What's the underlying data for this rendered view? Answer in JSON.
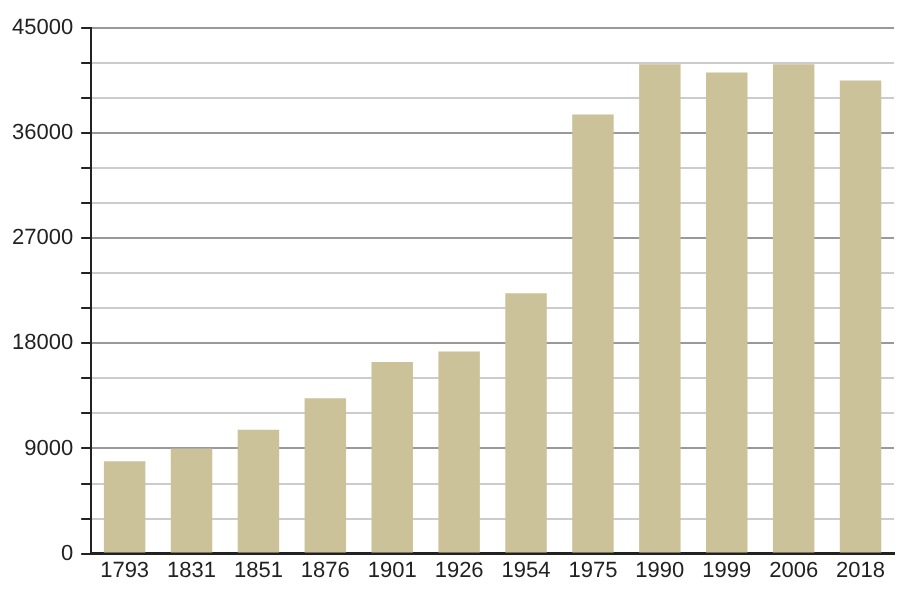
{
  "chart_data": {
    "type": "bar",
    "categories": [
      "1793",
      "1831",
      "1851",
      "1876",
      "1901",
      "1926",
      "1954",
      "1975",
      "1990",
      "1999",
      "2006",
      "2018"
    ],
    "values": [
      7900,
      9000,
      10600,
      13300,
      16400,
      17300,
      22300,
      37600,
      41900,
      41200,
      41900,
      40500
    ],
    "color": "#ccc29a",
    "ylim": [
      0,
      45000
    ],
    "yticks": [
      0,
      {
        "value": 3000,
        "label": null
      },
      {
        "value": 6000,
        "label": null
      },
      9000,
      {
        "value": 12000,
        "label": null
      },
      {
        "value": 15000,
        "label": null
      },
      18000,
      {
        "value": 21000,
        "label": null
      },
      {
        "value": 24000,
        "label": null
      },
      27000,
      {
        "value": 30000,
        "label": null
      },
      {
        "value": 33000,
        "label": null
      },
      36000,
      {
        "value": 39000,
        "label": null
      },
      {
        "value": 42000,
        "label": null
      },
      45000
    ],
    "grid": "y"
  }
}
